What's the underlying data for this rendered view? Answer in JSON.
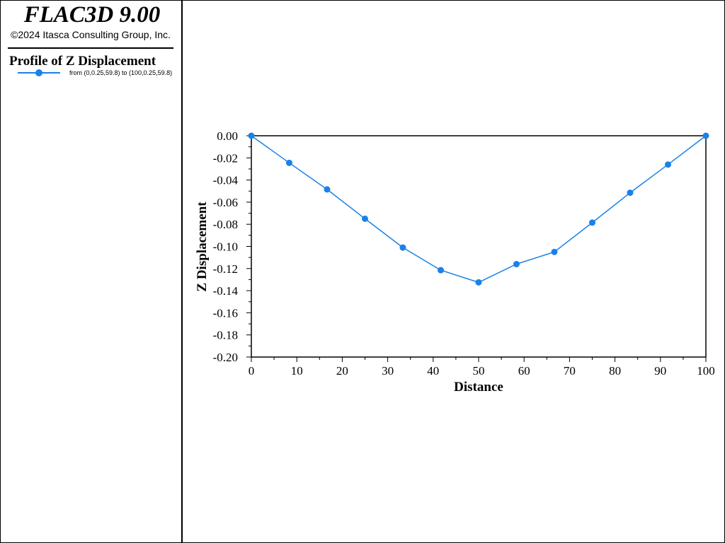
{
  "header": {
    "app_title": "FLAC3D 9.00",
    "copyright": "©2024 Itasca Consulting Group, Inc."
  },
  "legend": {
    "title": "Profile of Z Displacement",
    "entries": [
      {
        "label": "from (0,0.25,59.8) to (100,0.25,59.8)",
        "color": "#1a81e8",
        "marker": "circle"
      }
    ]
  },
  "chart_data": {
    "type": "line",
    "title": "",
    "xlabel": "Distance",
    "ylabel": "Z Displacement",
    "xlim": [
      0,
      100
    ],
    "ylim": [
      -0.2,
      0.0
    ],
    "grid": false,
    "x_ticks": [
      "0",
      "10",
      "20",
      "30",
      "40",
      "50",
      "60",
      "70",
      "80",
      "90",
      "100"
    ],
    "y_ticks": [
      "0.00",
      "-0.02",
      "-0.04",
      "-0.06",
      "-0.08",
      "-0.10",
      "-0.12",
      "-0.14",
      "-0.16",
      "-0.18",
      "-0.20"
    ],
    "series": [
      {
        "name": "from (0,0.25,59.8) to (100,0.25,59.8)",
        "color": "#1a81e8",
        "x": [
          0,
          8.33,
          16.67,
          25,
          33.33,
          41.67,
          50,
          58.33,
          66.67,
          75,
          83.33,
          91.67,
          100
        ],
        "y": [
          0.0,
          -0.0245,
          -0.0485,
          -0.075,
          -0.101,
          -0.1215,
          -0.1325,
          -0.116,
          -0.105,
          -0.0785,
          -0.0515,
          -0.026,
          0.0
        ]
      }
    ]
  }
}
